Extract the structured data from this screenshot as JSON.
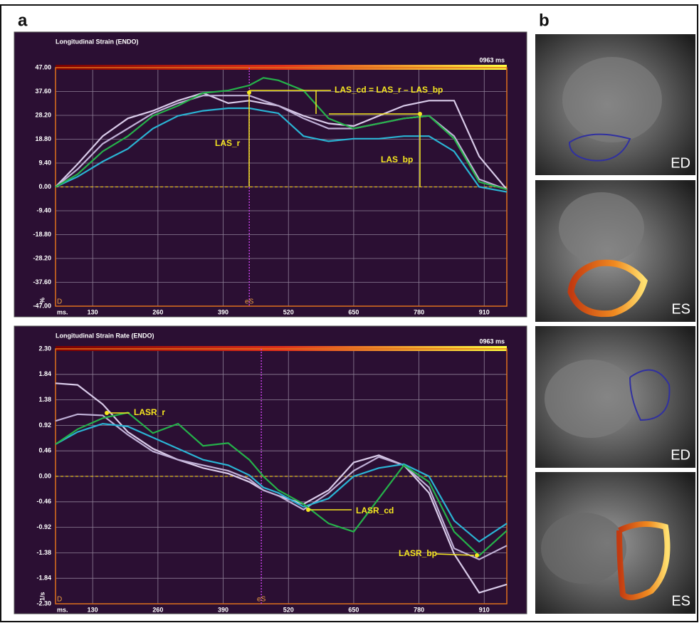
{
  "panel_labels": [
    "a",
    "b"
  ],
  "images": [
    {
      "label": "ED"
    },
    {
      "label": "ES"
    },
    {
      "label": "ED"
    },
    {
      "label": "ES"
    }
  ],
  "chart_data": [
    {
      "type": "line",
      "title": "Longitudinal Strain (ENDO)",
      "duration_label": "0963 ms",
      "x_label": "ms.",
      "y_label": "%",
      "start_label": "D",
      "event_label": "eS",
      "event_x": 442,
      "annotations": [
        "LAS_cd = LAS_r – LAS_bp",
        "LAS_r",
        "LAS_bp"
      ],
      "x": [
        56,
        100,
        150,
        200,
        250,
        300,
        350,
        400,
        442,
        470,
        500,
        550,
        600,
        650,
        700,
        750,
        800,
        850,
        900,
        955
      ],
      "xlim": [
        56,
        955
      ],
      "xticks": [
        130,
        260,
        390,
        520,
        650,
        780,
        910
      ],
      "ylim": [
        -47,
        47
      ],
      "yticks": [
        {
          "value": 47,
          "label": "47.00"
        },
        {
          "value": 37.6,
          "label": "37.60"
        },
        {
          "value": 28.2,
          "label": "28.20"
        },
        {
          "value": 18.8,
          "label": "18.80"
        },
        {
          "value": 9.4,
          "label": "9.40"
        },
        {
          "value": 0,
          "label": "0.00"
        },
        {
          "value": -9.4,
          "label": "-9.40"
        },
        {
          "value": -18.8,
          "label": "-18.80"
        },
        {
          "value": -28.2,
          "label": "-28.20"
        },
        {
          "value": -37.6,
          "label": "-37.60"
        },
        {
          "value": -47,
          "label": "-47.00"
        }
      ],
      "grid": true,
      "series": [
        {
          "color": "#d9cbe9",
          "values": [
            0,
            9,
            20,
            27,
            30,
            34,
            37,
            33,
            34,
            33,
            32,
            28,
            25,
            24,
            28,
            32,
            34,
            34,
            12,
            -1
          ]
        },
        {
          "color": "#bfb0d6",
          "values": [
            0,
            7,
            17,
            23,
            29,
            33,
            36,
            36,
            36,
            34,
            32,
            27,
            23,
            23,
            25,
            27,
            28,
            20,
            3,
            -1
          ]
        },
        {
          "color": "#2ab4d4",
          "values": [
            0,
            4,
            10,
            15,
            23,
            28,
            30,
            31,
            31,
            30,
            29,
            20,
            18,
            19,
            19,
            20,
            20,
            14,
            0,
            -2
          ]
        },
        {
          "color": "#25b24a",
          "values": [
            0,
            5,
            14,
            20,
            28,
            32,
            37,
            38,
            40,
            43,
            42,
            38,
            27,
            23,
            25,
            27,
            28,
            19,
            2,
            -1
          ]
        }
      ]
    },
    {
      "type": "line",
      "title": "Longitudinal Strain Rate (ENDO)",
      "duration_label": "0963 ms",
      "x_label": "ms.",
      "y_label": "1/s",
      "start_label": "D",
      "event_label": "eS",
      "event_x": 466,
      "annotations": [
        "LASR_r",
        "LASR_cd",
        "LASR_bp"
      ],
      "x": [
        56,
        100,
        150,
        200,
        250,
        300,
        350,
        400,
        442,
        470,
        500,
        550,
        600,
        650,
        700,
        750,
        800,
        850,
        900,
        955
      ],
      "xlim": [
        56,
        955
      ],
      "xticks": [
        130,
        260,
        390,
        520,
        650,
        780,
        910
      ],
      "ylim": [
        -2.3,
        2.3
      ],
      "yticks": [
        {
          "value": 2.3,
          "label": "2.30"
        },
        1.84,
        1.38,
        0.92,
        0.46,
        {
          "value": 0,
          "label": "0.00"
        },
        -0.46,
        -0.92,
        -1.38,
        -1.84,
        {
          "value": -2.3,
          "label": "-2.30"
        }
      ],
      "grid": true,
      "series": [
        {
          "color": "#d9cbe9",
          "values": [
            1.68,
            1.65,
            1.3,
            0.8,
            0.5,
            0.3,
            0.15,
            0.05,
            -0.1,
            -0.25,
            -0.35,
            -0.5,
            -0.25,
            0.25,
            0.38,
            0.2,
            -0.3,
            -1.4,
            -2.1,
            -1.95
          ]
        },
        {
          "color": "#bfb0d6",
          "values": [
            1.0,
            1.12,
            1.1,
            0.75,
            0.45,
            0.3,
            0.2,
            0.1,
            -0.05,
            -0.25,
            -0.35,
            -0.6,
            -0.3,
            0.1,
            0.35,
            0.2,
            -0.2,
            -1.3,
            -1.5,
            -1.25
          ]
        },
        {
          "color": "#2ab4d4",
          "values": [
            0.58,
            0.8,
            0.95,
            0.9,
            0.7,
            0.5,
            0.3,
            0.2,
            0.02,
            -0.2,
            -0.3,
            -0.55,
            -0.4,
            0.0,
            0.15,
            0.22,
            0.0,
            -0.8,
            -1.18,
            -0.85
          ]
        },
        {
          "color": "#25b24a",
          "values": [
            0.58,
            0.85,
            1.05,
            1.15,
            0.78,
            0.95,
            0.55,
            0.6,
            0.3,
            0.0,
            -0.25,
            -0.5,
            -0.85,
            -1.0,
            -0.4,
            0.2,
            -0.1,
            -1.0,
            -1.43,
            -0.98
          ]
        }
      ]
    }
  ]
}
